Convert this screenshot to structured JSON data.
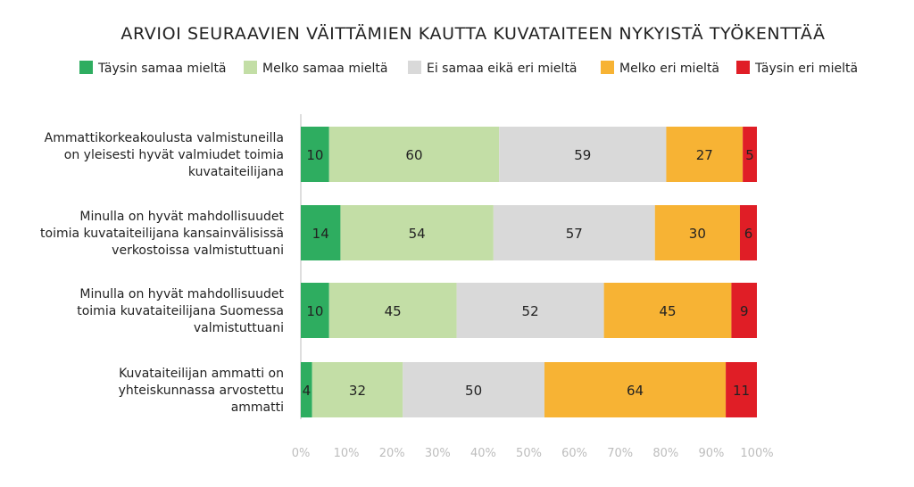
{
  "chart_data": {
    "type": "bar",
    "stacked": true,
    "orientation": "horizontal",
    "normalized": true,
    "title": "ARVIOI SEURAAVIEN VÄITTÄMIEN KAUTTA KUVATAITEEN NYKYISTÄ TYÖKENTTÄÄ",
    "categories": [
      [
        "Ammattikorkeakoulusta valmistuneilla",
        "on yleisesti hyvät valmiudet toimia",
        "kuvataiteilijana"
      ],
      [
        "Minulla on hyvät mahdollisuudet",
        "toimia kuvataiteilijana kansainvälisissä",
        "verkostoissa valmistuttuani"
      ],
      [
        "Minulla on hyvät mahdollisuudet",
        "toimia kuvataiteilijana Suomessa",
        "valmistuttuani"
      ],
      [
        "Kuvataiteilijan ammatti on",
        "yhteiskunnassa arvostettu",
        "ammatti"
      ]
    ],
    "series": [
      {
        "name": "Täysin samaa mieltä",
        "color": "#2ead60",
        "values": [
          10,
          14,
          10,
          4
        ]
      },
      {
        "name": "Melko samaa mieltä",
        "color": "#c3dea6",
        "values": [
          60,
          54,
          45,
          32
        ]
      },
      {
        "name": "Ei samaa eikä eri mieltä",
        "color": "#d9d9d9",
        "values": [
          59,
          57,
          52,
          50
        ]
      },
      {
        "name": "Melko eri mieltä",
        "color": "#f7b334",
        "values": [
          27,
          30,
          45,
          64
        ]
      },
      {
        "name": "Täysin eri mieltä",
        "color": "#e01e26",
        "values": [
          5,
          6,
          9,
          11
        ]
      }
    ],
    "x_ticks": [
      "0%",
      "10%",
      "20%",
      "30%",
      "40%",
      "50%",
      "60%",
      "70%",
      "80%",
      "90%",
      "100%"
    ],
    "xlim": [
      0,
      100
    ],
    "grid": false,
    "legend_position": "top"
  }
}
